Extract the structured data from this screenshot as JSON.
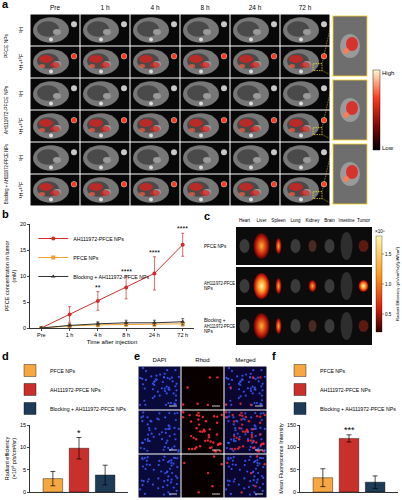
{
  "figure_panels": {
    "a": {
      "label": "a",
      "columns": [
        "Pre",
        "1 h",
        "4 h",
        "8 h",
        "24 h",
        "72 h"
      ],
      "groups": [
        "PFCE NPs",
        "AH111972-PFCE NPs",
        "Blocking + AH111972-PFCE NPs"
      ],
      "rows": [
        "¹H",
        "¹H+¹⁹F"
      ],
      "colorbar": {
        "high": "High",
        "low": "Low"
      }
    },
    "c": {
      "label": "c",
      "organs": [
        "Heart",
        "Liver",
        "Spleen",
        "Lung",
        "Kidney",
        "Brain",
        "Intestine",
        "Tumor"
      ],
      "groups": [
        "PFCE NPs",
        "AH111972-PFCE NPs",
        "Blocking + AH111972-PFCE NPs"
      ],
      "colorbar": {
        "exponent": "×10⁸",
        "title": "Radiant Efficiency (p/s/cm²/sr)/(μW/cm²)",
        "range": [
          0.2,
          1.8
        ],
        "ticks": [
          {
            "value": 0.5,
            "label": "0.5"
          },
          {
            "value": 1.0,
            "label": "1.0"
          },
          {
            "value": 1.5,
            "label": "1.5"
          }
        ]
      }
    },
    "e": {
      "label": "e",
      "columns": [
        "DAPI",
        "Rhod",
        "Merged"
      ]
    }
  },
  "chart_data": [
    {
      "panel_label": "b",
      "type": "line",
      "x_label": "Time after injection",
      "y_label": "PFCE concentration in tumor (mM)",
      "categories": [
        "Pre",
        "1 h",
        "4 h",
        "8 h",
        "24 h",
        "72 h"
      ],
      "ylim": [
        0,
        20
      ],
      "yticks": [
        0,
        5,
        10,
        15,
        20
      ],
      "legend": "upper left",
      "series": [
        {
          "name": "AH111972-PFCE NPs",
          "color": "#d42a2a",
          "marker": "circle",
          "values": [
            0,
            2.6,
            5.2,
            7.8,
            10.5,
            16
          ],
          "errors": [
            0.3,
            1.5,
            1.8,
            2.2,
            3.2,
            2.2
          ]
        },
        {
          "name": "PFCE NPs",
          "color": "#f0a030",
          "marker": "square",
          "values": [
            0,
            0.4,
            0.6,
            0.7,
            0.7,
            0.8
          ],
          "errors": [
            0.2,
            0.3,
            0.4,
            0.4,
            0.4,
            0.5
          ]
        },
        {
          "name": "Blocking + AH111972-PFCE NPs",
          "color": "#333333",
          "marker": "triangle",
          "values": [
            0,
            0.5,
            0.8,
            1.0,
            1.0,
            1.2
          ],
          "errors": [
            0.2,
            0.3,
            0.4,
            0.5,
            0.5,
            0.6
          ]
        }
      ],
      "annotations": [
        {
          "series": "AH111972-PFCE NPs",
          "category": "4 h",
          "text": "**"
        },
        {
          "series": "AH111972-PFCE NPs",
          "category": "8 h",
          "text": "****"
        },
        {
          "series": "AH111972-PFCE NPs",
          "category": "24 h",
          "text": "****"
        },
        {
          "series": "AH111972-PFCE NPs",
          "category": "72 h",
          "text": "****"
        }
      ]
    },
    {
      "panel_label": "d",
      "type": "bar",
      "y_label": "Radiant efficiency (×10⁸ p/s/cm²/sr)",
      "ylim": [
        0,
        15
      ],
      "yticks": [
        0,
        5,
        10,
        15
      ],
      "tick_labels": "y",
      "legend": "top",
      "series": [
        {
          "name": "PFCE NPs",
          "color": "#f5a742",
          "values": [
            3.0
          ],
          "errors": [
            1.6
          ]
        },
        {
          "name": "AH111972-PFCE NPs",
          "color": "#c9302c",
          "values": [
            9.8
          ],
          "errors": [
            2.4
          ]
        },
        {
          "name": "Blocking + AH111972-PFCE NPs",
          "color": "#1d3a57",
          "values": [
            3.8
          ],
          "errors": [
            2.2
          ]
        }
      ],
      "annotations": [
        {
          "series": "AH111972-PFCE NPs",
          "text": "*"
        }
      ]
    },
    {
      "panel_label": "f",
      "type": "bar",
      "y_label": "Mean Fluorescence Intensity",
      "ylim": [
        0,
        150
      ],
      "yticks": [
        0,
        50,
        100,
        150
      ],
      "tick_labels": "y",
      "legend": "top",
      "series": [
        {
          "name": "PFCE NPs",
          "color": "#f5a742",
          "values": [
            32
          ],
          "errors": [
            20
          ]
        },
        {
          "name": "AH111972-PFCE NPs",
          "color": "#c9302c",
          "values": [
            120
          ],
          "errors": [
            8
          ]
        },
        {
          "name": "Blocking + AH111972-PFCE NPs",
          "color": "#1d3a57",
          "values": [
            22
          ],
          "errors": [
            14
          ]
        }
      ],
      "annotations": [
        {
          "series": "AH111972-PFCE NPs",
          "text": "***"
        }
      ]
    }
  ]
}
